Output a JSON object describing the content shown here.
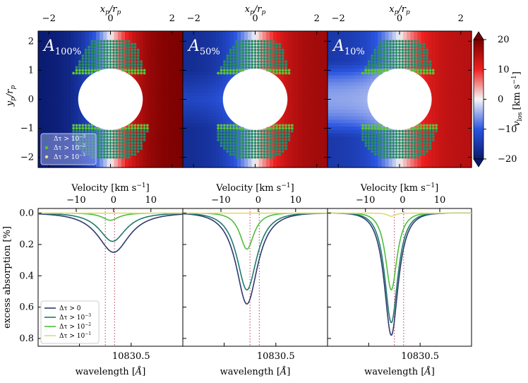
{
  "chart_data": [
    {
      "type": "heatmap",
      "panels": [
        {
          "label": "A",
          "subscript": "100%"
        },
        {
          "label": "A",
          "subscript": "50%"
        },
        {
          "label": "A",
          "subscript": "10%"
        }
      ],
      "top_xlabel": "x_p/r_p",
      "xlabel_main": "x",
      "xlabel_sub1": "p",
      "xlabel_mid": "/r",
      "xlabel_sub2": "p",
      "ylabel_main": "y",
      "ylabel_sub1": "p",
      "ylabel_mid": "/r",
      "ylabel_sub2": "p",
      "xlim": [
        -2.35,
        2.35
      ],
      "ylim": [
        -2.35,
        2.35
      ],
      "xticks": [
        "−2",
        "0",
        "2"
      ],
      "xtick_values": [
        -2,
        0,
        2
      ],
      "yticks": [
        "2",
        "1",
        "0",
        "−1",
        "−2"
      ],
      "ytick_values": [
        2,
        1,
        0,
        -1,
        -2
      ],
      "colorbar": {
        "label_main": "v",
        "label_sub": "los",
        "label_unit": "[km s",
        "label_exp": "−1",
        "label_close": "]",
        "range": [
          -20,
          20
        ],
        "ticks": [
          "20",
          "10",
          "0",
          "−10",
          "−20"
        ],
        "tick_values": [
          20,
          10,
          0,
          -10,
          -20
        ]
      },
      "legend": [
        {
          "text": "Δτ > 10",
          "exp": "−3",
          "color": "#2a8a68"
        },
        {
          "text": "Δτ > 10",
          "exp": "−2",
          "color": "#5cc33a"
        },
        {
          "text": "Δτ > 10",
          "exp": "−1",
          "color": "#e4e38a"
        }
      ]
    },
    {
      "type": "line",
      "xlabel": "wavelength [Å]",
      "xlabel_main": "wavelength [",
      "xlabel_angstrom": "Å",
      "xlabel_close": "]",
      "ylabel": "excess absorption [%]",
      "top_xlabel_main": "Velocity [km s",
      "top_xlabel_exp": "−1",
      "top_xlabel_close": "]",
      "xlim": [
        10829.6,
        10831.0
      ],
      "ylim": [
        0.85,
        -0.03
      ],
      "xticks": [
        "10830.5"
      ],
      "xtick_values": [
        10830.5
      ],
      "yticks": [
        "0.0",
        "0.2",
        "0.4",
        "0.6",
        "0.8"
      ],
      "ytick_values": [
        0.0,
        0.2,
        0.4,
        0.6,
        0.8
      ],
      "vel_ticks": [
        "−10",
        "0",
        "10"
      ],
      "vel_tick_values": [
        -10,
        0,
        10
      ],
      "rest_wavelength": 10830.33,
      "dotted_lines": [
        10830.25,
        10830.34
      ],
      "legend": [
        {
          "text": "Δτ > 0",
          "exp": "",
          "color": "#2e3a6e"
        },
        {
          "text": "Δτ > 10",
          "exp": "−3",
          "color": "#1f7a6e"
        },
        {
          "text": "Δτ > 10",
          "exp": "−2",
          "color": "#4fbf3a"
        },
        {
          "text": "Δτ > 10",
          "exp": "−1",
          "color": "#e2d87a"
        }
      ],
      "panels": [
        {
          "series": [
            {
              "name": "Δτ > 0",
              "center": 10830.33,
              "depth": 0.25,
              "width": 0.19
            },
            {
              "name": "Δτ > 10^-3",
              "center": 10830.32,
              "depth": 0.18,
              "width": 0.16
            },
            {
              "name": "Δτ > 10^-2",
              "center": 10830.3,
              "depth": 0.045,
              "width": 0.1
            },
            {
              "name": "Δτ > 10^-1",
              "center": 10830.3,
              "depth": 0.0,
              "width": 0.08
            }
          ]
        },
        {
          "series": [
            {
              "name": "Δτ > 0",
              "center": 10830.22,
              "depth": 0.58,
              "width": 0.13
            },
            {
              "name": "Δτ > 10^-3",
              "center": 10830.22,
              "depth": 0.49,
              "width": 0.12
            },
            {
              "name": "Δτ > 10^-2",
              "center": 10830.22,
              "depth": 0.23,
              "width": 0.085
            },
            {
              "name": "Δτ > 10^-1",
              "center": 10830.22,
              "depth": 0.0,
              "width": 0.06
            }
          ]
        },
        {
          "series": [
            {
              "name": "Δτ > 0",
              "center": 10830.22,
              "depth": 0.78,
              "width": 0.085
            },
            {
              "name": "Δτ > 10^-3",
              "center": 10830.22,
              "depth": 0.7,
              "width": 0.08
            },
            {
              "name": "Δτ > 10^-2",
              "center": 10830.22,
              "depth": 0.49,
              "width": 0.07
            },
            {
              "name": "Δτ > 10^-1",
              "center": 10830.22,
              "depth": 0.02,
              "width": 0.045
            }
          ]
        }
      ]
    }
  ]
}
